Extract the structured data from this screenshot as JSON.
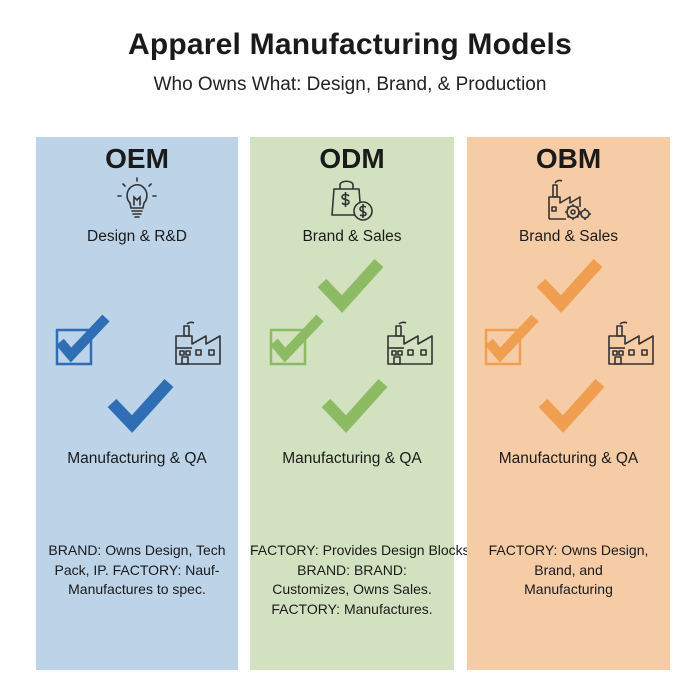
{
  "header": {
    "title": "Apparel Manufacturing Models",
    "subtitle": "Who Owns What: Design, Brand, & Production"
  },
  "colors": {
    "oem_bg": "#bcd3e8",
    "oem_accent": "#2f6db5",
    "odm_bg": "#d2e2c0",
    "odm_accent": "#8cbb64",
    "obm_bg": "#f5cca6",
    "obm_accent": "#ef9f4f",
    "icon_stroke": "#333333"
  },
  "columns": [
    {
      "key": "oem",
      "title": "OEM",
      "top_icon": "lightbulb-icon",
      "top_label": "Design & R&D",
      "mid_label": "Manufacturing & QA",
      "description": [
        "BRAND: Owns Design, Tech",
        "Pack, IP.  FACTORY: Nauf-",
        "Manufactures to spec."
      ]
    },
    {
      "key": "odm",
      "title": "ODM",
      "top_icon": "shopping-bag-dollar-icon",
      "top_label": "Brand & Sales",
      "mid_label": "Manufacturing & QA",
      "description": [
        "FACTORY: Provides Design Blocks.",
        "BRAND: BRAND:",
        "Customizes, Owns Sales.",
        "FACTORY: Manufactures."
      ]
    },
    {
      "key": "obm",
      "title": "OBM",
      "top_icon": "factory-gears-icon",
      "top_label": "Brand & Sales",
      "mid_label": "Manufacturing & QA",
      "description": [
        "FACTORY: Owns Design,",
        "Brand, and",
        "Manufacturing"
      ]
    }
  ]
}
